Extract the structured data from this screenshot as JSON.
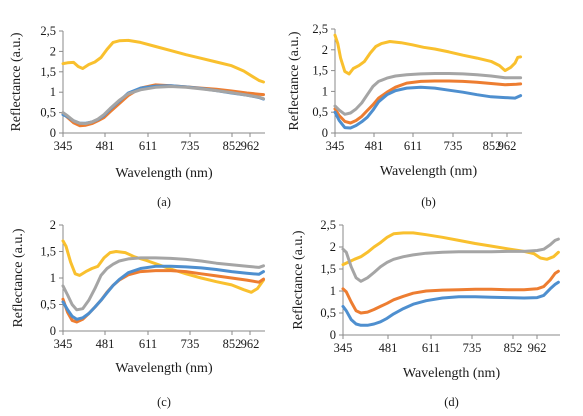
{
  "chart_data": [
    {
      "type": "line",
      "panel_label": "(a)",
      "xlabel": "Wavelength (nm)",
      "ylabel": "Reflectance (a.u.)",
      "x_ticks": [
        "345",
        "481",
        "611",
        "735",
        "852",
        "962"
      ],
      "y_ticks": [
        "0",
        "0,5",
        "1",
        "1,5",
        "2",
        "2,5"
      ],
      "xlim": [
        345,
        1010
      ],
      "ylim": [
        0,
        2.5
      ],
      "grid": false,
      "legend": "none",
      "series": [
        {
          "color": "#F9C02E",
          "x": [
            345,
            360,
            380,
            395,
            410,
            430,
            450,
            470,
            490,
            510,
            530,
            560,
            600,
            650,
            700,
            750,
            800,
            850,
            900,
            940,
            970,
            990,
            1005
          ],
          "y": [
            1.7,
            1.72,
            1.73,
            1.63,
            1.58,
            1.68,
            1.74,
            1.85,
            2.05,
            2.22,
            2.26,
            2.27,
            2.22,
            2.12,
            2.02,
            1.92,
            1.83,
            1.74,
            1.65,
            1.52,
            1.38,
            1.29,
            1.25
          ]
        },
        {
          "color": "#ED7D31",
          "x": [
            345,
            360,
            380,
            400,
            420,
            440,
            460,
            480,
            500,
            530,
            560,
            600,
            650,
            700,
            750,
            800,
            850,
            900,
            950,
            990,
            1005
          ],
          "y": [
            0.48,
            0.38,
            0.25,
            0.18,
            0.19,
            0.23,
            0.3,
            0.38,
            0.52,
            0.72,
            0.92,
            1.1,
            1.18,
            1.16,
            1.13,
            1.1,
            1.07,
            1.03,
            0.98,
            0.95,
            0.94
          ]
        },
        {
          "color": "#4E8FCF",
          "x": [
            345,
            360,
            380,
            400,
            420,
            440,
            460,
            480,
            500,
            530,
            560,
            600,
            650,
            700,
            750,
            800,
            850,
            900,
            950,
            990,
            1005
          ],
          "y": [
            0.45,
            0.4,
            0.3,
            0.24,
            0.24,
            0.27,
            0.33,
            0.43,
            0.58,
            0.78,
            0.98,
            1.1,
            1.15,
            1.16,
            1.13,
            1.09,
            1.04,
            0.98,
            0.93,
            0.87,
            0.83
          ]
        },
        {
          "color": "#A5A5A5",
          "x": [
            345,
            360,
            380,
            400,
            420,
            440,
            460,
            480,
            500,
            530,
            560,
            600,
            650,
            700,
            750,
            800,
            850,
            900,
            950,
            990,
            1005
          ],
          "y": [
            0.5,
            0.42,
            0.3,
            0.24,
            0.23,
            0.27,
            0.34,
            0.45,
            0.6,
            0.8,
            0.96,
            1.06,
            1.12,
            1.14,
            1.12,
            1.08,
            1.04,
            0.99,
            0.93,
            0.88,
            0.84
          ]
        }
      ]
    },
    {
      "type": "line",
      "panel_label": "(b)",
      "xlabel": "Wavelength (nm)",
      "ylabel": "Reflectance (a.u.)",
      "x_ticks": [
        "345",
        "481",
        "611",
        "735",
        "852",
        "962"
      ],
      "y_ticks": [
        "0",
        "0,5",
        "1",
        "1,5",
        "2",
        "2,5"
      ],
      "xlim": [
        345,
        1010
      ],
      "ylim": [
        0,
        2.5
      ],
      "grid": false,
      "legend": "none",
      "series": [
        {
          "color": "#F9C02E",
          "x": [
            345,
            355,
            365,
            380,
            395,
            410,
            430,
            450,
            470,
            490,
            510,
            540,
            580,
            620,
            660,
            700,
            750,
            800,
            850,
            900,
            930,
            950,
            970,
            985,
            995,
            1005
          ],
          "y": [
            2.35,
            2.15,
            1.8,
            1.48,
            1.42,
            1.55,
            1.62,
            1.72,
            1.92,
            2.08,
            2.15,
            2.2,
            2.17,
            2.12,
            2.06,
            2.02,
            1.95,
            1.87,
            1.8,
            1.72,
            1.62,
            1.5,
            1.58,
            1.68,
            1.82,
            1.83
          ]
        },
        {
          "color": "#ED7D31",
          "x": [
            345,
            360,
            380,
            400,
            420,
            440,
            460,
            480,
            500,
            530,
            560,
            600,
            650,
            700,
            750,
            800,
            850,
            900,
            950,
            990,
            1005
          ],
          "y": [
            0.58,
            0.42,
            0.28,
            0.24,
            0.3,
            0.4,
            0.54,
            0.68,
            0.84,
            0.98,
            1.1,
            1.2,
            1.24,
            1.25,
            1.25,
            1.24,
            1.22,
            1.19,
            1.16,
            1.17,
            1.18
          ]
        },
        {
          "color": "#4E8FCF",
          "x": [
            345,
            360,
            380,
            400,
            420,
            440,
            460,
            480,
            500,
            530,
            560,
            600,
            650,
            700,
            750,
            800,
            850,
            900,
            950,
            985,
            1005
          ],
          "y": [
            0.5,
            0.3,
            0.13,
            0.12,
            0.18,
            0.27,
            0.38,
            0.55,
            0.75,
            0.92,
            1.02,
            1.08,
            1.1,
            1.08,
            1.03,
            0.98,
            0.92,
            0.87,
            0.85,
            0.84,
            0.9
          ]
        },
        {
          "color": "#A5A5A5",
          "x": [
            345,
            360,
            380,
            400,
            420,
            440,
            460,
            480,
            500,
            530,
            560,
            600,
            650,
            700,
            750,
            800,
            850,
            900,
            950,
            990,
            1005
          ],
          "y": [
            0.65,
            0.55,
            0.45,
            0.48,
            0.58,
            0.72,
            0.92,
            1.12,
            1.24,
            1.32,
            1.37,
            1.4,
            1.42,
            1.43,
            1.43,
            1.42,
            1.4,
            1.37,
            1.33,
            1.33,
            1.33
          ]
        }
      ]
    },
    {
      "type": "line",
      "panel_label": "(c)",
      "xlabel": "Wavelength (nm)",
      "ylabel": "Reflectance (a.u.)",
      "x_ticks": [
        "345",
        "481",
        "611",
        "735",
        "852",
        "962"
      ],
      "y_ticks": [
        "0",
        "0,5",
        "1",
        "1,5",
        "2"
      ],
      "xlim": [
        345,
        1010
      ],
      "ylim": [
        0,
        2
      ],
      "grid": false,
      "legend": "none",
      "series": [
        {
          "color": "#F9C02E",
          "x": [
            345,
            355,
            370,
            385,
            400,
            420,
            440,
            460,
            480,
            500,
            520,
            550,
            580,
            620,
            660,
            700,
            750,
            800,
            850,
            900,
            940,
            965,
            985,
            1005
          ],
          "y": [
            1.7,
            1.6,
            1.3,
            1.08,
            1.05,
            1.12,
            1.18,
            1.22,
            1.38,
            1.48,
            1.5,
            1.48,
            1.4,
            1.33,
            1.25,
            1.17,
            1.08,
            1.0,
            0.93,
            0.87,
            0.78,
            0.73,
            0.8,
            0.96
          ]
        },
        {
          "color": "#ED7D31",
          "x": [
            345,
            360,
            375,
            390,
            410,
            430,
            450,
            470,
            490,
            510,
            530,
            560,
            600,
            650,
            700,
            750,
            800,
            850,
            900,
            950,
            990,
            1005
          ],
          "y": [
            0.6,
            0.35,
            0.2,
            0.17,
            0.22,
            0.33,
            0.45,
            0.58,
            0.73,
            0.86,
            0.96,
            1.06,
            1.12,
            1.14,
            1.14,
            1.12,
            1.08,
            1.04,
            1.0,
            0.96,
            0.92,
            0.98
          ]
        },
        {
          "color": "#4E8FCF",
          "x": [
            345,
            360,
            375,
            390,
            410,
            430,
            450,
            470,
            490,
            510,
            530,
            560,
            600,
            650,
            700,
            750,
            800,
            850,
            900,
            950,
            990,
            1005
          ],
          "y": [
            0.55,
            0.4,
            0.28,
            0.22,
            0.25,
            0.33,
            0.45,
            0.58,
            0.72,
            0.86,
            0.97,
            1.1,
            1.18,
            1.22,
            1.22,
            1.21,
            1.19,
            1.16,
            1.12,
            1.09,
            1.07,
            1.12
          ]
        },
        {
          "color": "#A5A5A5",
          "x": [
            345,
            360,
            375,
            390,
            410,
            430,
            450,
            470,
            490,
            510,
            530,
            560,
            600,
            650,
            700,
            750,
            800,
            850,
            900,
            950,
            990,
            1005
          ],
          "y": [
            0.85,
            0.68,
            0.5,
            0.4,
            0.42,
            0.58,
            0.8,
            1.05,
            1.18,
            1.26,
            1.32,
            1.36,
            1.38,
            1.38,
            1.37,
            1.35,
            1.32,
            1.28,
            1.25,
            1.22,
            1.2,
            1.23
          ]
        }
      ]
    },
    {
      "type": "line",
      "panel_label": "(d)",
      "xlabel": "Wavelength (nm)",
      "ylabel": "Reflectance (a.u.)",
      "x_ticks": [
        "345",
        "481",
        "611",
        "735",
        "852",
        "962"
      ],
      "y_ticks": [
        "0",
        "0,5",
        "1",
        "1,5",
        "2",
        "2,5"
      ],
      "xlim": [
        345,
        1010
      ],
      "ylim": [
        0,
        2.5
      ],
      "grid": false,
      "legend": "none",
      "series": [
        {
          "color": "#F9C02E",
          "x": [
            345,
            360,
            380,
            400,
            420,
            440,
            460,
            480,
            500,
            530,
            560,
            600,
            650,
            700,
            750,
            800,
            850,
            900,
            930,
            950,
            970,
            990,
            1005
          ],
          "y": [
            1.6,
            1.65,
            1.72,
            1.78,
            1.88,
            2.0,
            2.1,
            2.22,
            2.3,
            2.32,
            2.32,
            2.28,
            2.22,
            2.15,
            2.08,
            2.02,
            1.96,
            1.9,
            1.85,
            1.75,
            1.72,
            1.78,
            1.88
          ]
        },
        {
          "color": "#ED7D31",
          "x": [
            345,
            355,
            370,
            385,
            400,
            420,
            440,
            460,
            480,
            500,
            530,
            560,
            600,
            650,
            700,
            750,
            800,
            850,
            900,
            940,
            960,
            980,
            995,
            1005
          ],
          "y": [
            1.05,
            0.98,
            0.75,
            0.55,
            0.5,
            0.52,
            0.58,
            0.65,
            0.72,
            0.8,
            0.88,
            0.95,
            1.0,
            1.02,
            1.03,
            1.04,
            1.04,
            1.03,
            1.03,
            1.05,
            1.1,
            1.25,
            1.4,
            1.45
          ]
        },
        {
          "color": "#4E8FCF",
          "x": [
            345,
            355,
            370,
            385,
            400,
            420,
            440,
            460,
            480,
            500,
            530,
            560,
            600,
            650,
            700,
            750,
            800,
            850,
            900,
            940,
            960,
            980,
            995,
            1005
          ],
          "y": [
            0.65,
            0.55,
            0.35,
            0.25,
            0.22,
            0.22,
            0.25,
            0.3,
            0.38,
            0.48,
            0.6,
            0.7,
            0.78,
            0.84,
            0.87,
            0.87,
            0.86,
            0.85,
            0.84,
            0.85,
            0.9,
            1.05,
            1.15,
            1.2
          ]
        },
        {
          "color": "#A5A5A5",
          "x": [
            345,
            355,
            370,
            385,
            400,
            420,
            440,
            460,
            480,
            500,
            530,
            560,
            600,
            650,
            700,
            750,
            800,
            850,
            900,
            940,
            960,
            980,
            995,
            1005
          ],
          "y": [
            1.95,
            1.88,
            1.55,
            1.3,
            1.22,
            1.3,
            1.42,
            1.55,
            1.65,
            1.72,
            1.78,
            1.82,
            1.86,
            1.88,
            1.89,
            1.89,
            1.89,
            1.9,
            1.9,
            1.92,
            1.95,
            2.05,
            2.15,
            2.18
          ]
        }
      ]
    }
  ]
}
